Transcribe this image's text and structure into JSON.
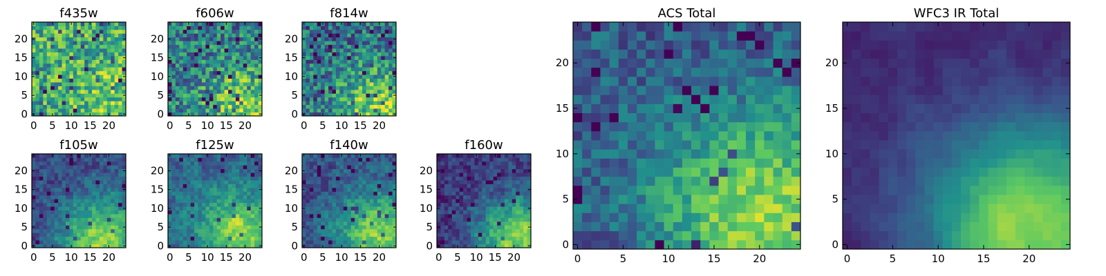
{
  "chart_data": {
    "type": "heatmap",
    "figure_title": "",
    "colormap": "viridis",
    "colormap_stops": [
      "#440154",
      "#3b528b",
      "#21908d",
      "#5dc962",
      "#fde725"
    ],
    "grid_shape": [
      25,
      25
    ],
    "panels": [
      {
        "title": "f435w",
        "size": "small",
        "xticks": [
          0,
          5,
          10,
          15,
          20
        ],
        "yticks": [
          0,
          5,
          10,
          15,
          20
        ],
        "xlim": [
          -0.5,
          24.5
        ],
        "ylim": [
          -0.5,
          24.5
        ],
        "seed": 11,
        "hot": [
          21,
          3
        ],
        "mean": 0.66,
        "amp": 0.12,
        "noise": 0.58,
        "smooth": 0.05,
        "low": 0.07
      },
      {
        "title": "f606w",
        "size": "small",
        "xticks": [
          0,
          5,
          10,
          15,
          20
        ],
        "yticks": [
          0,
          5,
          10,
          15,
          20
        ],
        "xlim": [
          -0.5,
          24.5
        ],
        "ylim": [
          -0.5,
          24.5
        ],
        "seed": 23,
        "hot": [
          20,
          2
        ],
        "mean": 0.55,
        "amp": 0.36,
        "noise": 0.58,
        "smooth": 0.05,
        "low": 0.08
      },
      {
        "title": "f814w",
        "size": "small",
        "xticks": [
          0,
          5,
          10,
          15,
          20
        ],
        "yticks": [
          0,
          5,
          10,
          15,
          20
        ],
        "xlim": [
          -0.5,
          24.5
        ],
        "ylim": [
          -0.5,
          24.5
        ],
        "seed": 37,
        "hot": [
          20,
          2
        ],
        "mean": 0.52,
        "amp": 0.4,
        "noise": 0.55,
        "smooth": 0.05,
        "low": 0.08
      },
      {
        "title": "f105w",
        "size": "small",
        "xticks": [
          0,
          5,
          10,
          15,
          20
        ],
        "yticks": [
          0,
          5,
          10,
          15,
          20
        ],
        "xlim": [
          -0.5,
          24.5
        ],
        "ylim": [
          -0.5,
          24.5
        ],
        "seed": 41,
        "hot": [
          18,
          2
        ],
        "mean": 0.42,
        "amp": 0.55,
        "noise": 0.32,
        "smooth": 0.3,
        "low": 0.04
      },
      {
        "title": "f125w",
        "size": "small",
        "xticks": [
          0,
          5,
          10,
          15,
          20
        ],
        "yticks": [
          0,
          5,
          10,
          15,
          20
        ],
        "xlim": [
          -0.5,
          24.5
        ],
        "ylim": [
          -0.5,
          24.5
        ],
        "seed": 53,
        "hot": [
          19,
          3
        ],
        "mean": 0.5,
        "amp": 0.48,
        "noise": 0.32,
        "smooth": 0.3,
        "low": 0.04
      },
      {
        "title": "f140w",
        "size": "small",
        "xticks": [
          0,
          5,
          10,
          15,
          20
        ],
        "yticks": [
          0,
          5,
          10,
          15,
          20
        ],
        "xlim": [
          -0.5,
          24.5
        ],
        "ylim": [
          -0.5,
          24.5
        ],
        "seed": 67,
        "hot": [
          20,
          3
        ],
        "mean": 0.45,
        "amp": 0.52,
        "noise": 0.32,
        "smooth": 0.3,
        "low": 0.04
      },
      {
        "title": "f160w",
        "size": "small",
        "xticks": [
          0,
          5,
          10,
          15,
          20
        ],
        "yticks": [
          0,
          5,
          10,
          15,
          20
        ],
        "xlim": [
          -0.5,
          24.5
        ],
        "ylim": [
          -0.5,
          24.5
        ],
        "seed": 79,
        "hot": [
          21,
          2
        ],
        "mean": 0.38,
        "amp": 0.62,
        "noise": 0.32,
        "smooth": 0.3,
        "low": 0.05
      },
      {
        "title": "ACS Total",
        "size": "large",
        "xticks": [
          0,
          5,
          10,
          15,
          20
        ],
        "yticks": [
          0,
          5,
          10,
          15,
          20
        ],
        "xlim": [
          -0.5,
          24.5
        ],
        "ylim": [
          -0.5,
          24.5
        ],
        "seed": 97,
        "hot": [
          20,
          3
        ],
        "mean": 0.48,
        "amp": 0.52,
        "noise": 0.34,
        "smooth": 0.15,
        "low": 0.05
      },
      {
        "title": "WFC3 IR Total",
        "size": "large",
        "xticks": [
          0,
          5,
          10,
          15,
          20
        ],
        "yticks": [
          0,
          5,
          10,
          15,
          20
        ],
        "xlim": [
          -0.5,
          24.5
        ],
        "ylim": [
          -0.5,
          24.5
        ],
        "seed": 131,
        "hot": [
          20,
          2
        ],
        "mean": 0.36,
        "amp": 0.7,
        "noise": 0.12,
        "smooth": 0.55,
        "low": 0.0
      }
    ]
  }
}
